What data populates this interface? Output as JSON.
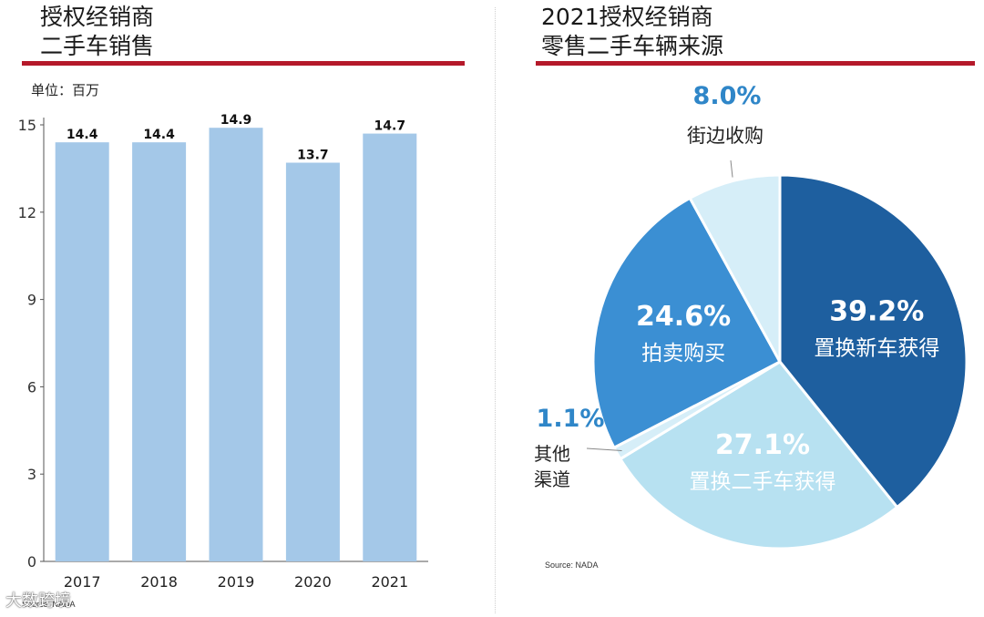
{
  "left": {
    "title_line1": "授权经销商",
    "title_line2": "二手车销售",
    "unit": "单位：百万",
    "source": "Source: NADA"
  },
  "right": {
    "title_line1": "2021授权经销商",
    "title_line2": "零售二手车辆来源",
    "source": "Source: NADA"
  },
  "watermark": "大数跨境",
  "colors": {
    "accent_rule": "#b5192a",
    "bar": "#a4c8e8",
    "pie_dark": "#1e5f9f",
    "pie_mid": "#3b8fd3",
    "pie_light": "#b7e1f1",
    "pie_lighter": "#d6eef8",
    "label_blue": "#2f86c8"
  },
  "chart_data": [
    {
      "type": "bar",
      "categories": [
        "2017",
        "2018",
        "2019",
        "2020",
        "2021"
      ],
      "values": [
        14.4,
        14.4,
        14.9,
        13.7,
        14.7
      ],
      "value_labels": [
        "14.4",
        "14.4",
        "14.9",
        "13.7",
        "14.7"
      ],
      "title": "授权经销商二手车销售",
      "ylabel": "单位：百万",
      "yticks": [
        "0",
        "3",
        "6",
        "9",
        "12",
        "15"
      ],
      "ylim": [
        0,
        15
      ],
      "grid": false,
      "legend": "none"
    },
    {
      "type": "pie",
      "title": "2021授权经销商零售二手车辆来源",
      "slices": [
        {
          "label": "置换新车获得",
          "value": 39.2,
          "value_label": "39.2%",
          "color": "#1e5f9f"
        },
        {
          "label": "置换二手车获得",
          "value": 27.1,
          "value_label": "27.1%",
          "color": "#b7e1f1"
        },
        {
          "label": "其他渠道",
          "value": 1.1,
          "value_label": "1.1%",
          "color": "#d6eef8"
        },
        {
          "label": "拍卖购买",
          "value": 24.6,
          "value_label": "24.6%",
          "color": "#3b8fd3"
        },
        {
          "label": "街边收购",
          "value": 8.0,
          "value_label": "8.0%",
          "color": "#d6eef8"
        }
      ]
    }
  ]
}
